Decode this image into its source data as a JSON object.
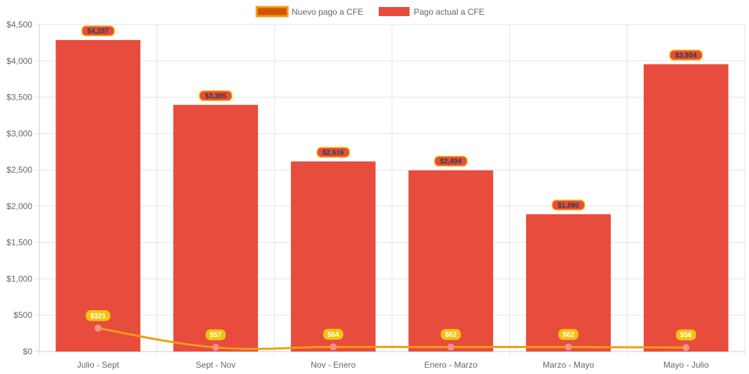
{
  "chart_data": {
    "type": "bar",
    "categories": [
      "Julio - Sept",
      "Sept - Nov",
      "Nov - Enero",
      "Enero - Marzo",
      "Marzo - Mayo",
      "Mayo - Julio"
    ],
    "series": [
      {
        "name": "Nuevo pago a CFE",
        "kind": "line",
        "values": [
          321,
          57,
          64,
          62,
          62,
          56
        ],
        "labels": [
          "$321",
          "$57",
          "$64",
          "$62",
          "$62",
          "$56"
        ],
        "color": "#f39c12",
        "swatch_color": "#d35400",
        "point_color": "#f1948a",
        "label_bg": "#f1c40f",
        "label_text_color": "#ffffff"
      },
      {
        "name": "Pago actual a CFE",
        "kind": "bar",
        "values": [
          4287,
          3395,
          2616,
          2494,
          1890,
          3954
        ],
        "labels": [
          "$4,287",
          "$3,395",
          "$2,616",
          "$2,494",
          "$1,890",
          "$3,954"
        ],
        "color": "#e74c3c",
        "label_bg": "#e74c3c",
        "label_border": "#f1c40f",
        "label_text_color": "#2c3e50"
      }
    ],
    "y_ticks": [
      "$0",
      "$500",
      "$1,000",
      "$1,500",
      "$2,000",
      "$2,500",
      "$3,000",
      "$3,500",
      "$4,000",
      "$4,500"
    ],
    "ylim": [
      0,
      4500
    ],
    "grid": true,
    "legend": "top-center"
  }
}
